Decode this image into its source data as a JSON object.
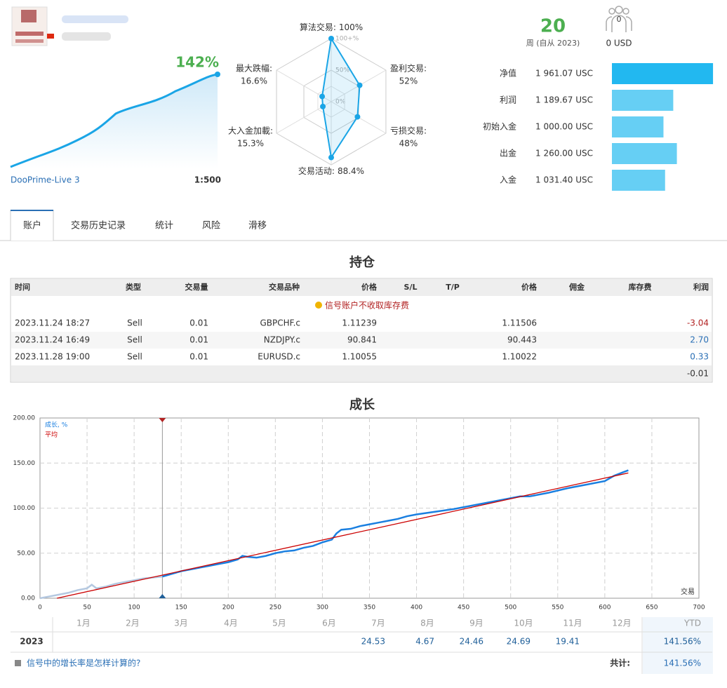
{
  "account": {
    "growth": "142%",
    "server": "DooPrime-Live 3",
    "leverage": "1:500"
  },
  "radar": {
    "type": "radar",
    "rlim": [
      0,
      100
    ],
    "color": "#1aa5e6",
    "scale_labels": [
      {
        "value": 100,
        "label": "100+%"
      },
      {
        "value": 50,
        "label": "50%"
      },
      {
        "value": 0,
        "label": "0%"
      }
    ],
    "axes": [
      {
        "label": "算法交易:",
        "value": 100,
        "value_label": "100%"
      },
      {
        "label": "盈利交易:",
        "value": 52,
        "value_label": "52%"
      },
      {
        "label": "亏损交易:",
        "value": 48,
        "value_label": "48%"
      },
      {
        "label": "交易活动:",
        "value": 88.4,
        "value_label": "88.4%"
      },
      {
        "label": "大入金加載:",
        "value": 15.3,
        "value_label": "15.3%"
      },
      {
        "label": "最大跌幅:",
        "value": 16.6,
        "value_label": "16.6%"
      }
    ]
  },
  "stats": {
    "weeks": "20",
    "weeks_label": "周 (自从 2023)",
    "subscribers": "0",
    "subscribers_value": "0 USD"
  },
  "balance": {
    "type": "bar",
    "xlim": [
      0,
      1960
    ],
    "colors": [
      "#22b8f0",
      "#66cff4"
    ],
    "items": [
      {
        "label": "净值",
        "value": 1961.07,
        "value_label": "1 961.07 USC"
      },
      {
        "label": "利润",
        "value": 1189.67,
        "value_label": "1 189.67 USC"
      },
      {
        "label": "初始入金",
        "value": 1000.0,
        "value_label": "1 000.00 USC"
      },
      {
        "label": "出金",
        "value": 1260.0,
        "value_label": "1 260.00 USC"
      },
      {
        "label": "入金",
        "value": 1031.4,
        "value_label": "1 031.40 USC"
      }
    ]
  },
  "tabs": [
    "账户",
    "交易历史记录",
    "统计",
    "风险",
    "滑移"
  ],
  "positions": {
    "title": "持仓",
    "columns": [
      "时间",
      "类型",
      "交易量",
      "交易品种",
      "价格",
      "S/L",
      "T/P",
      "价格",
      "佣金",
      "库存费",
      "利润"
    ],
    "notice": "信号账户不收取库存费",
    "rows": [
      [
        "2023.11.24 18:27",
        "Sell",
        "0.01",
        "GBPCHF.c",
        "1.11239",
        null,
        null,
        "1.11506",
        null,
        null,
        "-3.04"
      ],
      [
        "2023.11.24 16:49",
        "Sell",
        "0.01",
        "NZDJPY.c",
        "90.841",
        null,
        null,
        "90.443",
        null,
        null,
        "2.70"
      ],
      [
        "2023.11.28 19:00",
        "Sell",
        "0.01",
        "EURUSD.c",
        "1.10055",
        null,
        null,
        "1.10022",
        null,
        null,
        "0.33"
      ]
    ],
    "total": "-0.01"
  },
  "chart_data": {
    "type": "line",
    "title": "成长",
    "xlabel": "交易",
    "xlim": [
      0,
      700
    ],
    "ylim": [
      0,
      200
    ],
    "xticks": [
      0,
      50,
      100,
      150,
      200,
      250,
      300,
      350,
      400,
      450,
      500,
      550,
      600,
      650,
      700
    ],
    "yticks": [
      {
        "value": 0,
        "label": "0.00"
      },
      {
        "value": 50,
        "label": "50.00"
      },
      {
        "value": 100,
        "label": "100.00"
      },
      {
        "value": 150,
        "label": "150.00"
      },
      {
        "value": 200,
        "label": "200.00"
      }
    ],
    "grid": true,
    "marker_x": 130,
    "pre_marker_color": "#b4c8e0",
    "series": [
      {
        "name": "成长, %",
        "color": "#1a7fe0",
        "x": [
          0,
          10,
          20,
          30,
          40,
          50,
          55,
          60,
          70,
          80,
          90,
          100,
          110,
          120,
          130,
          140,
          150,
          160,
          170,
          180,
          190,
          200,
          210,
          215,
          220,
          230,
          240,
          250,
          260,
          270,
          280,
          290,
          300,
          310,
          315,
          320,
          330,
          340,
          350,
          360,
          370,
          380,
          390,
          400,
          420,
          440,
          460,
          480,
          500,
          510,
          520,
          540,
          560,
          580,
          600,
          610,
          620,
          625
        ],
        "values": [
          0,
          2,
          4,
          6,
          9,
          11,
          15,
          11,
          13,
          16,
          18,
          20,
          22,
          23,
          24,
          27,
          30,
          32,
          34,
          36,
          38,
          40,
          43,
          47,
          46,
          45,
          47,
          50,
          52,
          53,
          56,
          58,
          62,
          65,
          72,
          76,
          77,
          80,
          82,
          84,
          86,
          88,
          91,
          93,
          96,
          99,
          103,
          107,
          111,
          113,
          113,
          117,
          122,
          126,
          130,
          136,
          140,
          142
        ]
      },
      {
        "name": "平均",
        "color": "#cc0000",
        "x": [
          18,
          625
        ],
        "values": [
          0,
          139
        ]
      }
    ]
  },
  "returns": {
    "months": [
      "1月",
      "2月",
      "3月",
      "4月",
      "5月",
      "6月",
      "7月",
      "8月",
      "9月",
      "10月",
      "11月",
      "12月"
    ],
    "ytd_header": "YTD",
    "rows": [
      {
        "year": "2023",
        "values": [
          null,
          null,
          null,
          null,
          null,
          null,
          "24.53",
          "4.67",
          "24.46",
          "24.69",
          "19.41",
          null
        ],
        "ytd": "141.56%"
      }
    ],
    "help": "信号中的增长率是怎样计算的?",
    "total_label": "共计:",
    "total": "141.56%"
  }
}
